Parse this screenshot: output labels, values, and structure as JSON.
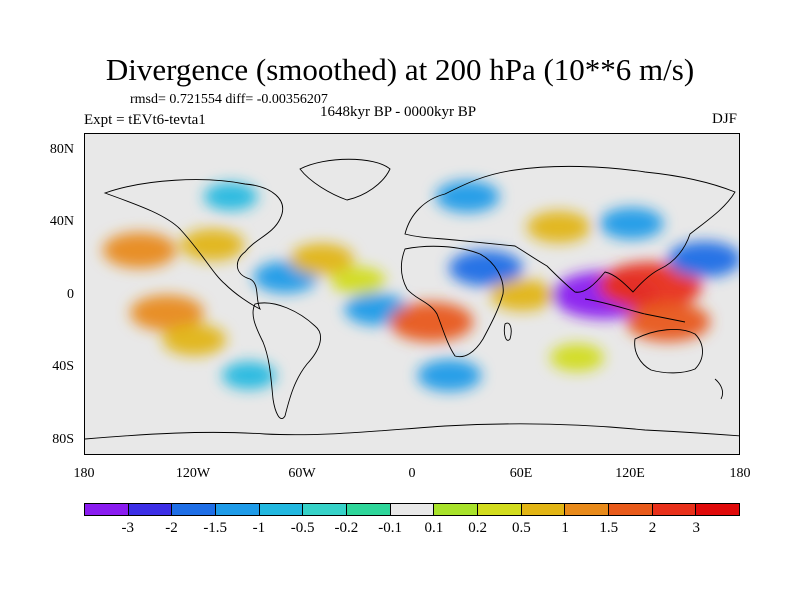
{
  "title": "Divergence (smoothed) at 200 hPa (10**6 m/s)",
  "stats": "rmsd= 0.721554 diff= -0.00356207",
  "experiment": "Expt = tEVt6-tevta1",
  "period": "1648kyr BP - 0000kyr BP",
  "season": "DJF",
  "chart_data": {
    "type": "heatmap",
    "projection": "cylindrical equidistant",
    "lon_range": [
      -180,
      180
    ],
    "lat_range": [
      -90,
      90
    ],
    "y_tick_labels": [
      "80N",
      "40N",
      "0",
      "40S",
      "80S"
    ],
    "x_tick_labels": [
      "180",
      "120W",
      "60W",
      "0",
      "60E",
      "120E",
      "180"
    ],
    "colorbar": {
      "labels": [
        "-3",
        "-2",
        "-1.5",
        "-1",
        "-0.5",
        "-0.2",
        "-0.1",
        "0.1",
        "0.2",
        "0.5",
        "1",
        "1.5",
        "2",
        "3"
      ],
      "colors": [
        "#8a1cf0",
        "#3c2ee6",
        "#1e6ee6",
        "#1e9be8",
        "#22b8e0",
        "#36d2c8",
        "#2ed69a",
        "#e8e8e8",
        "#a8e22a",
        "#d2dc1e",
        "#e2b514",
        "#e88a1a",
        "#e85a1a",
        "#e8301a",
        "#e00a0a"
      ]
    },
    "features": [
      {
        "lon": -150,
        "lat": 25,
        "value": 1.5
      },
      {
        "lon": -110,
        "lat": 28,
        "value": 1.0
      },
      {
        "lon": -135,
        "lat": -10,
        "value": 1.5
      },
      {
        "lon": -120,
        "lat": -25,
        "value": 1.0
      },
      {
        "lon": -70,
        "lat": 10,
        "value": -1.0
      },
      {
        "lon": -50,
        "lat": 20,
        "value": 1.0
      },
      {
        "lon": -30,
        "lat": 8,
        "value": 0.5
      },
      {
        "lon": -20,
        "lat": -8,
        "value": -1.0
      },
      {
        "lon": 10,
        "lat": -15,
        "value": 2.0
      },
      {
        "lon": 40,
        "lat": 15,
        "value": -1.5
      },
      {
        "lon": 60,
        "lat": 0,
        "value": 1.0
      },
      {
        "lon": 105,
        "lat": 0,
        "value": -3.0
      },
      {
        "lon": 130,
        "lat": 5,
        "value": 3.0
      },
      {
        "lon": 140,
        "lat": -15,
        "value": 2.0
      },
      {
        "lon": 160,
        "lat": 20,
        "value": -1.5
      },
      {
        "lon": 30,
        "lat": 55,
        "value": -1.0
      },
      {
        "lon": -100,
        "lat": 55,
        "value": -0.5
      },
      {
        "lon": 120,
        "lat": 40,
        "value": -1.0
      },
      {
        "lon": 80,
        "lat": 38,
        "value": 1.0
      },
      {
        "lon": 90,
        "lat": -35,
        "value": 0.5
      },
      {
        "lon": -90,
        "lat": -45,
        "value": -0.5
      },
      {
        "lon": 20,
        "lat": -45,
        "value": -1.0
      }
    ]
  }
}
